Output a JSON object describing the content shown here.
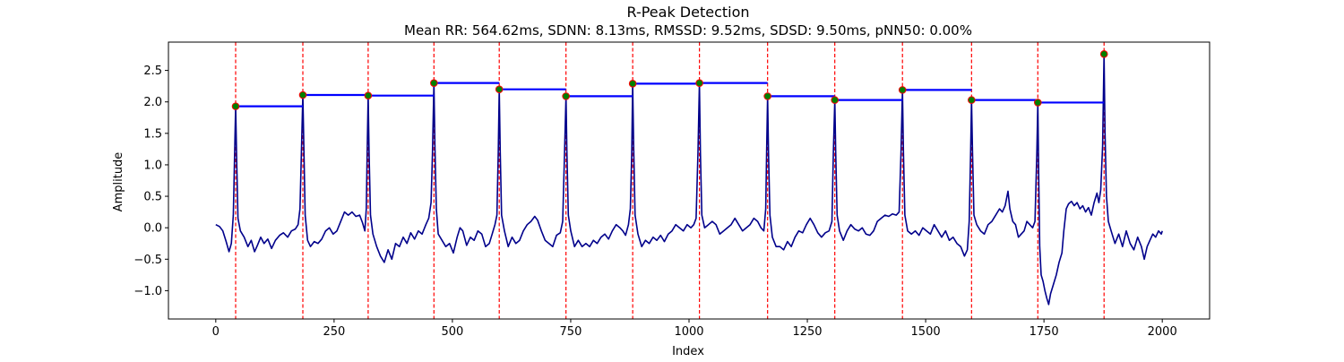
{
  "chart_data": {
    "type": "line",
    "title": "R-Peak Detection",
    "subtitle": "Mean RR: 564.62ms, SDNN: 8.13ms, RMSSD: 9.52ms, SDSD: 9.50ms, pNN50: 0.00%",
    "xlabel": "Index",
    "ylabel": "Amplitude",
    "xlim": [
      -100,
      2100
    ],
    "ylim": [
      -1.45,
      2.95
    ],
    "xticks": [
      0,
      250,
      500,
      750,
      1000,
      1250,
      1500,
      1750,
      2000
    ],
    "yticks": [
      -1.0,
      -0.5,
      0.0,
      0.5,
      1.0,
      1.5,
      2.0,
      2.5
    ],
    "grid": false,
    "colors": {
      "signal": "#00008b",
      "peak_lines": "#ff0000",
      "rr_segments": "#0000ff",
      "peak_marker_fill": "#008000",
      "peak_marker_edge": "#ff0000"
    },
    "peaks": [
      {
        "x": 42,
        "y": 1.93
      },
      {
        "x": 184,
        "y": 2.11
      },
      {
        "x": 322,
        "y": 2.1
      },
      {
        "x": 461,
        "y": 2.3
      },
      {
        "x": 599,
        "y": 2.2
      },
      {
        "x": 740,
        "y": 2.09
      },
      {
        "x": 881,
        "y": 2.29
      },
      {
        "x": 1022,
        "y": 2.3
      },
      {
        "x": 1166,
        "y": 2.09
      },
      {
        "x": 1308,
        "y": 2.03
      },
      {
        "x": 1451,
        "y": 2.19
      },
      {
        "x": 1597,
        "y": 2.03
      },
      {
        "x": 1737,
        "y": 1.99
      },
      {
        "x": 1877,
        "y": 2.76
      }
    ],
    "signal_points": [
      [
        0,
        0.05
      ],
      [
        8,
        0.02
      ],
      [
        15,
        -0.05
      ],
      [
        22,
        -0.22
      ],
      [
        28,
        -0.38
      ],
      [
        33,
        -0.25
      ],
      [
        37,
        0.2
      ],
      [
        40,
        1.2
      ],
      [
        42,
        1.93
      ],
      [
        44,
        1.1
      ],
      [
        47,
        0.15
      ],
      [
        52,
        -0.05
      ],
      [
        60,
        -0.15
      ],
      [
        68,
        -0.3
      ],
      [
        75,
        -0.2
      ],
      [
        82,
        -0.38
      ],
      [
        88,
        -0.28
      ],
      [
        95,
        -0.15
      ],
      [
        102,
        -0.25
      ],
      [
        110,
        -0.18
      ],
      [
        118,
        -0.33
      ],
      [
        126,
        -0.2
      ],
      [
        135,
        -0.12
      ],
      [
        143,
        -0.08
      ],
      [
        152,
        -0.15
      ],
      [
        160,
        -0.05
      ],
      [
        168,
        -0.02
      ],
      [
        174,
        0.05
      ],
      [
        178,
        0.3
      ],
      [
        181,
        1.2
      ],
      [
        184,
        2.11
      ],
      [
        186,
        1.3
      ],
      [
        189,
        0.2
      ],
      [
        194,
        -0.2
      ],
      [
        200,
        -0.3
      ],
      [
        208,
        -0.22
      ],
      [
        216,
        -0.25
      ],
      [
        224,
        -0.18
      ],
      [
        232,
        -0.05
      ],
      [
        240,
        0.0
      ],
      [
        248,
        -0.1
      ],
      [
        256,
        -0.05
      ],
      [
        264,
        0.1
      ],
      [
        272,
        0.25
      ],
      [
        280,
        0.2
      ],
      [
        288,
        0.25
      ],
      [
        296,
        0.18
      ],
      [
        304,
        0.2
      ],
      [
        310,
        0.08
      ],
      [
        315,
        -0.05
      ],
      [
        318,
        0.3
      ],
      [
        320,
        1.2
      ],
      [
        322,
        2.1
      ],
      [
        324,
        1.2
      ],
      [
        327,
        0.2
      ],
      [
        332,
        -0.1
      ],
      [
        340,
        -0.3
      ],
      [
        348,
        -0.45
      ],
      [
        356,
        -0.55
      ],
      [
        364,
        -0.35
      ],
      [
        372,
        -0.5
      ],
      [
        380,
        -0.25
      ],
      [
        388,
        -0.3
      ],
      [
        396,
        -0.15
      ],
      [
        404,
        -0.25
      ],
      [
        412,
        -0.08
      ],
      [
        420,
        -0.18
      ],
      [
        428,
        -0.05
      ],
      [
        436,
        -0.1
      ],
      [
        444,
        0.05
      ],
      [
        450,
        0.15
      ],
      [
        455,
        0.4
      ],
      [
        458,
        1.2
      ],
      [
        461,
        2.3
      ],
      [
        463,
        1.3
      ],
      [
        466,
        0.3
      ],
      [
        470,
        -0.1
      ],
      [
        478,
        -0.2
      ],
      [
        486,
        -0.3
      ],
      [
        494,
        -0.25
      ],
      [
        502,
        -0.4
      ],
      [
        510,
        -0.15
      ],
      [
        516,
        0.0
      ],
      [
        522,
        -0.05
      ],
      [
        530,
        -0.28
      ],
      [
        538,
        -0.15
      ],
      [
        546,
        -0.2
      ],
      [
        554,
        -0.05
      ],
      [
        562,
        -0.1
      ],
      [
        570,
        -0.3
      ],
      [
        578,
        -0.25
      ],
      [
        584,
        -0.1
      ],
      [
        590,
        0.05
      ],
      [
        594,
        0.2
      ],
      [
        597,
        1.2
      ],
      [
        599,
        2.2
      ],
      [
        601,
        1.2
      ],
      [
        604,
        0.2
      ],
      [
        610,
        -0.05
      ],
      [
        618,
        -0.3
      ],
      [
        626,
        -0.15
      ],
      [
        634,
        -0.25
      ],
      [
        642,
        -0.2
      ],
      [
        650,
        -0.05
      ],
      [
        658,
        0.05
      ],
      [
        666,
        0.1
      ],
      [
        674,
        0.18
      ],
      [
        680,
        0.12
      ],
      [
        688,
        -0.05
      ],
      [
        696,
        -0.2
      ],
      [
        704,
        -0.25
      ],
      [
        712,
        -0.3
      ],
      [
        720,
        -0.12
      ],
      [
        728,
        -0.08
      ],
      [
        733,
        0.1
      ],
      [
        737,
        1.2
      ],
      [
        740,
        2.09
      ],
      [
        742,
        1.2
      ],
      [
        745,
        0.2
      ],
      [
        750,
        -0.05
      ],
      [
        758,
        -0.3
      ],
      [
        766,
        -0.2
      ],
      [
        774,
        -0.3
      ],
      [
        782,
        -0.25
      ],
      [
        790,
        -0.3
      ],
      [
        798,
        -0.2
      ],
      [
        806,
        -0.25
      ],
      [
        814,
        -0.15
      ],
      [
        822,
        -0.1
      ],
      [
        830,
        -0.18
      ],
      [
        838,
        -0.05
      ],
      [
        846,
        0.05
      ],
      [
        854,
        0.0
      ],
      [
        860,
        -0.05
      ],
      [
        866,
        -0.12
      ],
      [
        872,
        0.05
      ],
      [
        876,
        0.3
      ],
      [
        879,
        1.2
      ],
      [
        881,
        2.29
      ],
      [
        883,
        1.3
      ],
      [
        886,
        0.2
      ],
      [
        892,
        -0.1
      ],
      [
        900,
        -0.3
      ],
      [
        908,
        -0.2
      ],
      [
        916,
        -0.25
      ],
      [
        924,
        -0.15
      ],
      [
        932,
        -0.2
      ],
      [
        940,
        -0.12
      ],
      [
        948,
        -0.22
      ],
      [
        956,
        -0.1
      ],
      [
        964,
        -0.05
      ],
      [
        972,
        0.05
      ],
      [
        980,
        0.0
      ],
      [
        988,
        -0.05
      ],
      [
        996,
        0.05
      ],
      [
        1004,
        0.0
      ],
      [
        1010,
        0.05
      ],
      [
        1015,
        0.15
      ],
      [
        1019,
        1.2
      ],
      [
        1022,
        2.3
      ],
      [
        1024,
        1.2
      ],
      [
        1027,
        0.2
      ],
      [
        1033,
        0.0
      ],
      [
        1041,
        0.05
      ],
      [
        1049,
        0.1
      ],
      [
        1057,
        0.05
      ],
      [
        1065,
        -0.1
      ],
      [
        1073,
        -0.05
      ],
      [
        1081,
        0.0
      ],
      [
        1089,
        0.05
      ],
      [
        1097,
        0.15
      ],
      [
        1105,
        0.05
      ],
      [
        1113,
        -0.05
      ],
      [
        1121,
        0.0
      ],
      [
        1129,
        0.05
      ],
      [
        1137,
        0.15
      ],
      [
        1145,
        0.1
      ],
      [
        1152,
        0.0
      ],
      [
        1158,
        -0.05
      ],
      [
        1162,
        0.3
      ],
      [
        1164,
        1.2
      ],
      [
        1166,
        2.09
      ],
      [
        1168,
        1.2
      ],
      [
        1171,
        0.2
      ],
      [
        1176,
        -0.15
      ],
      [
        1184,
        -0.3
      ],
      [
        1192,
        -0.3
      ],
      [
        1200,
        -0.35
      ],
      [
        1208,
        -0.22
      ],
      [
        1216,
        -0.3
      ],
      [
        1224,
        -0.15
      ],
      [
        1232,
        -0.05
      ],
      [
        1240,
        -0.08
      ],
      [
        1248,
        0.05
      ],
      [
        1256,
        0.15
      ],
      [
        1264,
        0.05
      ],
      [
        1272,
        -0.08
      ],
      [
        1280,
        -0.15
      ],
      [
        1288,
        -0.08
      ],
      [
        1296,
        -0.05
      ],
      [
        1302,
        0.1
      ],
      [
        1305,
        1.2
      ],
      [
        1308,
        2.03
      ],
      [
        1310,
        1.2
      ],
      [
        1313,
        0.2
      ],
      [
        1318,
        -0.05
      ],
      [
        1326,
        -0.2
      ],
      [
        1334,
        -0.05
      ],
      [
        1342,
        0.05
      ],
      [
        1350,
        -0.02
      ],
      [
        1358,
        -0.05
      ],
      [
        1366,
        0.0
      ],
      [
        1374,
        -0.1
      ],
      [
        1382,
        -0.12
      ],
      [
        1390,
        -0.05
      ],
      [
        1398,
        0.1
      ],
      [
        1406,
        0.15
      ],
      [
        1414,
        0.2
      ],
      [
        1422,
        0.18
      ],
      [
        1430,
        0.22
      ],
      [
        1438,
        0.2
      ],
      [
        1444,
        0.25
      ],
      [
        1448,
        1.2
      ],
      [
        1451,
        2.19
      ],
      [
        1453,
        1.2
      ],
      [
        1456,
        0.2
      ],
      [
        1462,
        -0.05
      ],
      [
        1470,
        -0.1
      ],
      [
        1478,
        -0.05
      ],
      [
        1486,
        -0.12
      ],
      [
        1494,
        0.0
      ],
      [
        1502,
        -0.05
      ],
      [
        1510,
        -0.1
      ],
      [
        1518,
        0.05
      ],
      [
        1526,
        -0.05
      ],
      [
        1534,
        -0.15
      ],
      [
        1542,
        -0.05
      ],
      [
        1550,
        -0.2
      ],
      [
        1558,
        -0.15
      ],
      [
        1566,
        -0.25
      ],
      [
        1574,
        -0.3
      ],
      [
        1582,
        -0.45
      ],
      [
        1588,
        -0.35
      ],
      [
        1592,
        0.1
      ],
      [
        1595,
        1.2
      ],
      [
        1597,
        2.03
      ],
      [
        1599,
        1.2
      ],
      [
        1602,
        0.2
      ],
      [
        1608,
        0.05
      ],
      [
        1616,
        -0.05
      ],
      [
        1624,
        -0.1
      ],
      [
        1632,
        0.05
      ],
      [
        1640,
        0.1
      ],
      [
        1648,
        0.2
      ],
      [
        1656,
        0.3
      ],
      [
        1662,
        0.25
      ],
      [
        1668,
        0.35
      ],
      [
        1674,
        0.58
      ],
      [
        1678,
        0.3
      ],
      [
        1684,
        0.1
      ],
      [
        1690,
        0.05
      ],
      [
        1696,
        -0.15
      ],
      [
        1702,
        -0.1
      ],
      [
        1708,
        -0.05
      ],
      [
        1714,
        0.1
      ],
      [
        1720,
        0.05
      ],
      [
        1726,
        0.0
      ],
      [
        1731,
        0.1
      ],
      [
        1735,
        1.2
      ],
      [
        1737,
        1.99
      ],
      [
        1739,
        0.8
      ],
      [
        1741,
        -0.3
      ],
      [
        1744,
        -0.75
      ],
      [
        1748,
        -0.85
      ],
      [
        1752,
        -1.0
      ],
      [
        1756,
        -1.12
      ],
      [
        1760,
        -1.22
      ],
      [
        1764,
        -1.05
      ],
      [
        1770,
        -0.9
      ],
      [
        1776,
        -0.75
      ],
      [
        1782,
        -0.55
      ],
      [
        1788,
        -0.4
      ],
      [
        1792,
        -0.05
      ],
      [
        1797,
        0.3
      ],
      [
        1802,
        0.38
      ],
      [
        1808,
        0.42
      ],
      [
        1814,
        0.35
      ],
      [
        1820,
        0.4
      ],
      [
        1826,
        0.3
      ],
      [
        1832,
        0.35
      ],
      [
        1838,
        0.25
      ],
      [
        1844,
        0.32
      ],
      [
        1850,
        0.2
      ],
      [
        1856,
        0.4
      ],
      [
        1862,
        0.55
      ],
      [
        1866,
        0.4
      ],
      [
        1870,
        0.6
      ],
      [
        1874,
        1.3
      ],
      [
        1877,
        2.76
      ],
      [
        1879,
        1.5
      ],
      [
        1882,
        0.5
      ],
      [
        1886,
        0.1
      ],
      [
        1892,
        -0.05
      ],
      [
        1900,
        -0.25
      ],
      [
        1908,
        -0.1
      ],
      [
        1916,
        -0.3
      ],
      [
        1924,
        -0.05
      ],
      [
        1932,
        -0.25
      ],
      [
        1940,
        -0.35
      ],
      [
        1948,
        -0.15
      ],
      [
        1956,
        -0.3
      ],
      [
        1962,
        -0.5
      ],
      [
        1968,
        -0.3
      ],
      [
        1974,
        -0.2
      ],
      [
        1980,
        -0.1
      ],
      [
        1986,
        -0.15
      ],
      [
        1992,
        -0.05
      ],
      [
        1998,
        -0.1
      ],
      [
        2000,
        -0.05
      ]
    ]
  }
}
